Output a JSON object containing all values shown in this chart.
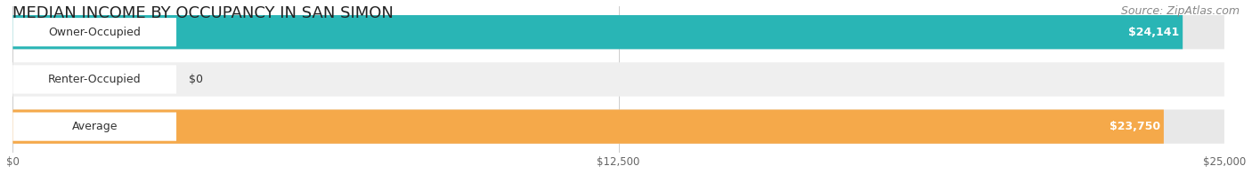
{
  "title": "MEDIAN INCOME BY OCCUPANCY IN SAN SIMON",
  "source": "Source: ZipAtlas.com",
  "categories": [
    "Owner-Occupied",
    "Renter-Occupied",
    "Average"
  ],
  "values": [
    24141,
    0,
    23750
  ],
  "bar_colors": [
    "#29b5b5",
    "#b39dcc",
    "#f5a94a"
  ],
  "bar_bg_color": "#dcdcdc",
  "row_bg_colors": [
    "#e8e8e8",
    "#efefef",
    "#e8e8e8"
  ],
  "label_color": "#333333",
  "value_labels": [
    "$24,141",
    "$0",
    "$23,750"
  ],
  "xmax": 25000,
  "xticks": [
    0,
    12500,
    25000
  ],
  "xtick_labels": [
    "$0",
    "$12,500",
    "$25,000"
  ],
  "title_fontsize": 13,
  "source_fontsize": 9,
  "bar_label_fontsize": 9,
  "value_label_fontsize": 9,
  "figsize": [
    14.06,
    1.96
  ],
  "dpi": 100
}
